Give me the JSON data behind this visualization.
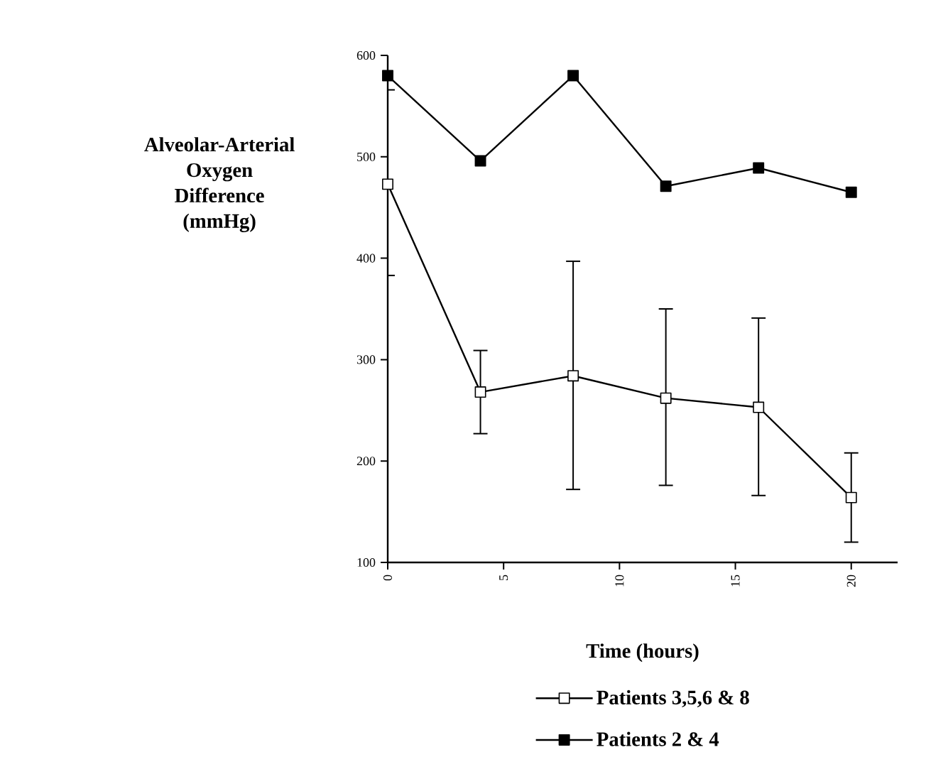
{
  "chart_data": {
    "type": "line",
    "xlabel": "Time (hours)",
    "ylabel": "Alveolar-Arterial\nOxygen\nDifference\n(mmHg)",
    "x": [
      0,
      4,
      8,
      12,
      16,
      20
    ],
    "series": [
      {
        "name": "Patients 3,5,6 & 8",
        "color": "#000000",
        "values": [
          473,
          268,
          284,
          262,
          253,
          164
        ],
        "errors": [
          [
            383,
            566
          ],
          [
            227,
            309
          ],
          [
            172,
            397
          ],
          [
            176,
            350
          ],
          [
            166,
            341
          ],
          [
            120,
            208
          ]
        ]
      },
      {
        "name": "Patients 2 & 4",
        "color": "#000000",
        "values": [
          580,
          496,
          580,
          471,
          489,
          465
        ]
      }
    ],
    "xlim": [
      0,
      22
    ],
    "xticks": [
      0,
      5,
      10,
      15,
      20
    ],
    "ylim": [
      100,
      600
    ],
    "yticks": [
      100,
      200,
      300,
      400,
      500,
      600
    ],
    "grid": false,
    "legend": "bottom",
    "marker": "square",
    "line_style": "solid"
  }
}
